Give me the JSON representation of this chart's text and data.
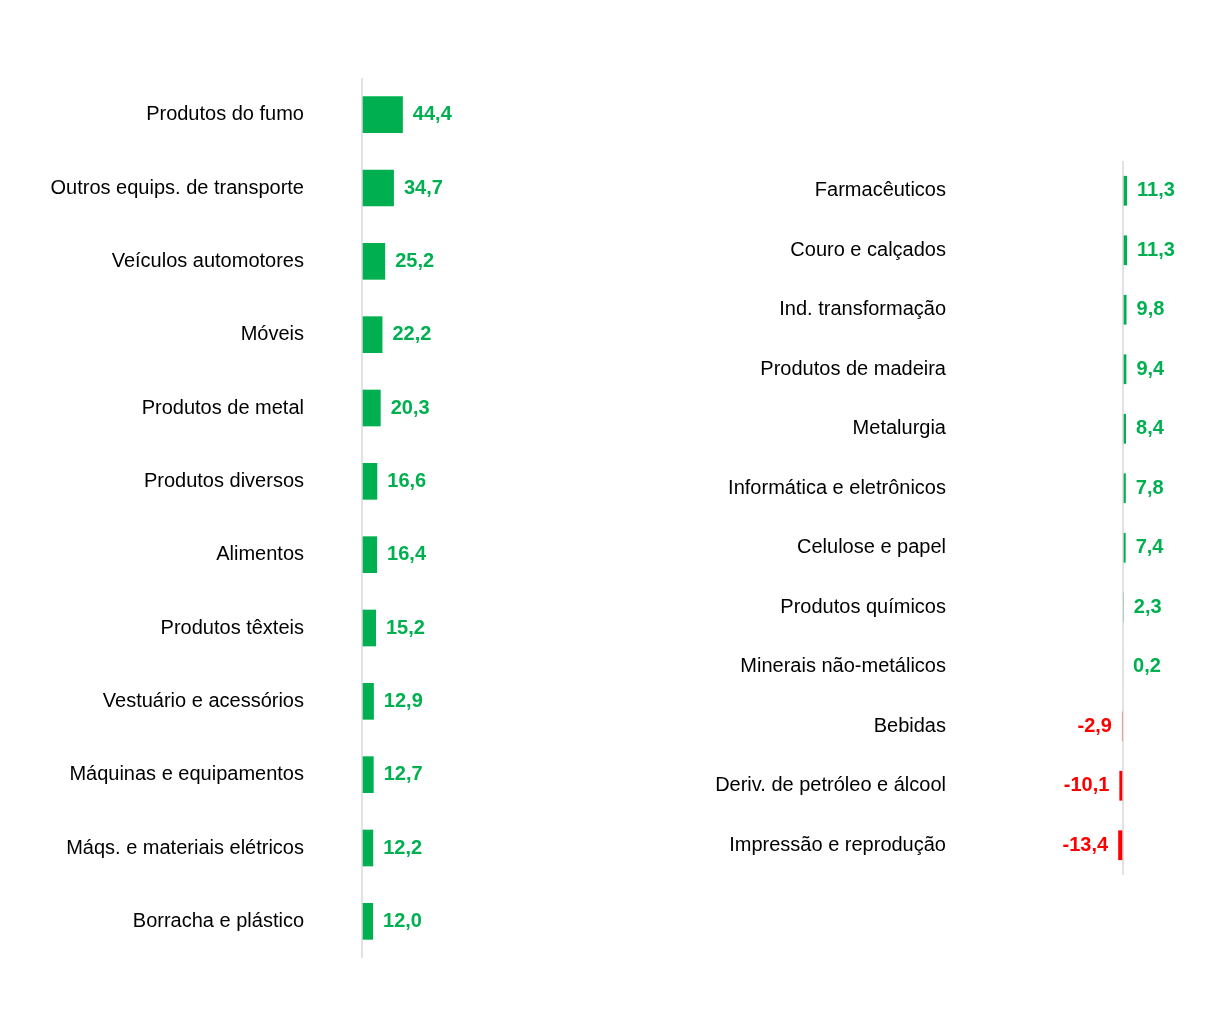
{
  "chart_data": [
    {
      "type": "bar",
      "orientation": "horizontal",
      "categories": [
        "Produtos do fumo",
        "Outros equips. de transporte",
        "Veículos automotores",
        "Móveis",
        "Produtos de metal",
        "Produtos diversos",
        "Alimentos",
        "Produtos têxteis",
        "Vestuário e acessórios",
        "Máquinas e equipamentos",
        "Máqs. e materiais elétricos",
        "Borracha e plástico"
      ],
      "values": [
        44.4,
        34.7,
        25.2,
        22.2,
        20.3,
        16.6,
        16.4,
        15.2,
        12.9,
        12.7,
        12.2,
        12.0
      ],
      "colors": [
        "#00b050",
        "#00b050",
        "#00b050",
        "#00b050",
        "#00b050",
        "#00b050",
        "#00b050",
        "#00b050",
        "#00b050",
        "#00b050",
        "#00b050",
        "#00b050"
      ],
      "value_labels": [
        "44,4",
        "34,7",
        "25,2",
        "22,2",
        "20,3",
        "16,6",
        "16,4",
        "15,2",
        "12,9",
        "12,7",
        "12,2",
        "12,0"
      ],
      "grid": false,
      "legend": false,
      "tick_labels": "y"
    },
    {
      "type": "bar",
      "orientation": "horizontal",
      "categories": [
        "Farmacêuticos",
        "Couro e calçados",
        "Ind. transformação",
        "Produtos de madeira",
        "Metalurgia",
        "Informática e eletrônicos",
        "Celulose e papel",
        "Produtos químicos",
        "Minerais não-metálicos",
        "Bebidas",
        "Deriv. de petróleo e álcool",
        "Impressão e reprodução"
      ],
      "values": [
        11.3,
        11.3,
        9.8,
        9.4,
        8.4,
        7.8,
        7.4,
        2.3,
        0.2,
        -2.9,
        -10.1,
        -13.4
      ],
      "colors": [
        "#00b050",
        "#00b050",
        "#00b050",
        "#00b050",
        "#00b050",
        "#00b050",
        "#00b050",
        "#00b050",
        "#00b050",
        "#ff0000",
        "#ff0000",
        "#ff0000"
      ],
      "value_labels": [
        "11,3",
        "11,3",
        "9,8",
        "9,4",
        "8,4",
        "7,8",
        "7,4",
        "2,3",
        "0,2",
        "-2,9",
        "-10,1",
        "-13,4"
      ],
      "grid": false,
      "legend": false,
      "tick_labels": "y"
    }
  ]
}
